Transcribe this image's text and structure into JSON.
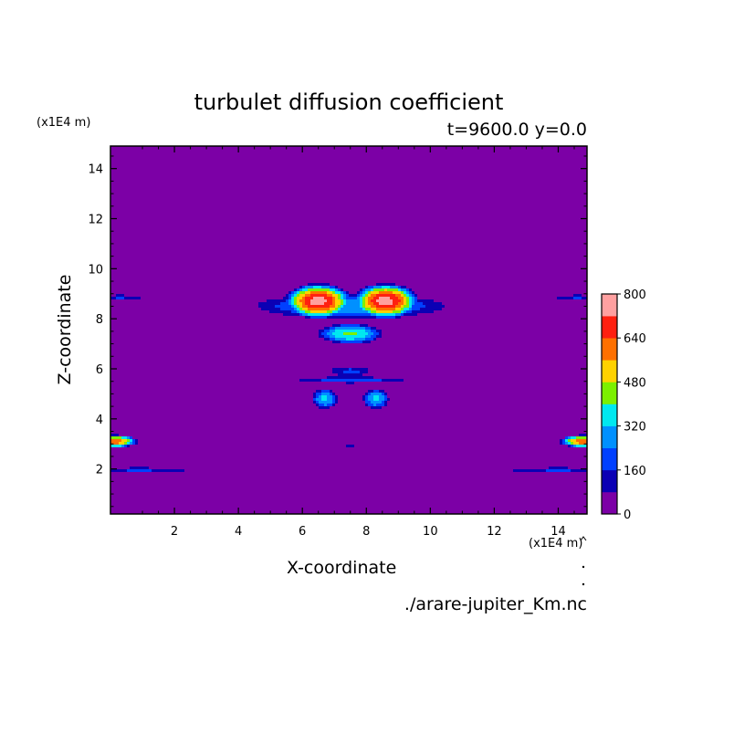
{
  "chart_data": {
    "type": "heatmap",
    "title": "turbulet diffusion coefficient",
    "subtitle": "t=9600.0 y=0.0",
    "xlabel": "X-coordinate",
    "ylabel": "Z-coordinate",
    "x_unit": "(x1E4 m)",
    "y_unit": "(x1E4 m)",
    "source": "./arare-jupiter_Km.nc",
    "xlim": [
      0,
      14.9
    ],
    "ylim": [
      0.2,
      14.9
    ],
    "x_ticks": [
      2,
      4,
      6,
      8,
      10,
      12,
      14
    ],
    "y_ticks": [
      2,
      4,
      6,
      8,
      10,
      12,
      14
    ],
    "x_tick_labels": [
      "2",
      "4",
      "6",
      "8",
      "10",
      "12",
      "14"
    ],
    "y_tick_labels": [
      "2",
      "4",
      "6",
      "8",
      "10",
      "12",
      "14"
    ],
    "background_value": 0,
    "colorbar": {
      "range": [
        0,
        800
      ],
      "step": 80,
      "tick_values": [
        0,
        160,
        320,
        480,
        640,
        800
      ],
      "tick_labels": [
        "0",
        "160",
        "320",
        "480",
        "640",
        "800"
      ],
      "colors": [
        "#7c00a6",
        "#0b00b4",
        "#0040ff",
        "#0090ff",
        "#00e8f0",
        "#7cf000",
        "#ffd200",
        "#ff7000",
        "#ff2010",
        "#ffa0a0"
      ]
    },
    "features": [
      {
        "name": "upper-cloud-body",
        "cx": 7.5,
        "cz": 8.5,
        "rx": 3.4,
        "rz": 0.55,
        "peak": 300
      },
      {
        "name": "upper-cloud-top-left-lobe",
        "cx": 6.5,
        "cz": 8.7,
        "rx": 1.1,
        "rz": 0.75,
        "peak": 760
      },
      {
        "name": "upper-cloud-top-right-lobe",
        "cx": 8.6,
        "cz": 8.7,
        "rx": 1.1,
        "rz": 0.75,
        "peak": 760
      },
      {
        "name": "upper-cloud-bottom",
        "cx": 7.5,
        "cz": 7.4,
        "rx": 1.1,
        "rz": 0.45,
        "peak": 420
      },
      {
        "name": "left-edge-band-9",
        "cx": 0.3,
        "cz": 8.85,
        "rx": 0.9,
        "rz": 0.12,
        "peak": 170
      },
      {
        "name": "right-edge-band-9",
        "cx": 14.6,
        "cz": 8.85,
        "rx": 0.9,
        "rz": 0.12,
        "peak": 170
      },
      {
        "name": "middle-wing-band",
        "cx": 7.5,
        "cz": 5.55,
        "rx": 2.1,
        "rz": 0.15,
        "peak": 200
      },
      {
        "name": "middle-cap",
        "cx": 7.5,
        "cz": 5.9,
        "rx": 0.8,
        "rz": 0.25,
        "peak": 180
      },
      {
        "name": "lower-left-blob",
        "cx": 6.7,
        "cz": 4.8,
        "rx": 0.45,
        "rz": 0.45,
        "peak": 340
      },
      {
        "name": "lower-right-blob",
        "cx": 8.3,
        "cz": 4.8,
        "rx": 0.45,
        "rz": 0.45,
        "peak": 340
      },
      {
        "name": "small-center-streak",
        "cx": 7.5,
        "cz": 2.9,
        "rx": 0.35,
        "rz": 0.04,
        "peak": 120
      },
      {
        "name": "left-edge-blob-3",
        "cx": 0.1,
        "cz": 3.1,
        "rx": 0.8,
        "rz": 0.28,
        "peak": 640
      },
      {
        "name": "right-edge-blob-3",
        "cx": 14.8,
        "cz": 3.1,
        "rx": 0.8,
        "rz": 0.28,
        "peak": 640
      },
      {
        "name": "left-bottom-band",
        "cx": 0.9,
        "cz": 1.95,
        "rx": 2.0,
        "rz": 0.13,
        "peak": 170
      },
      {
        "name": "right-bottom-band",
        "cx": 14.0,
        "cz": 1.95,
        "rx": 2.0,
        "rz": 0.13,
        "peak": 170
      }
    ]
  }
}
